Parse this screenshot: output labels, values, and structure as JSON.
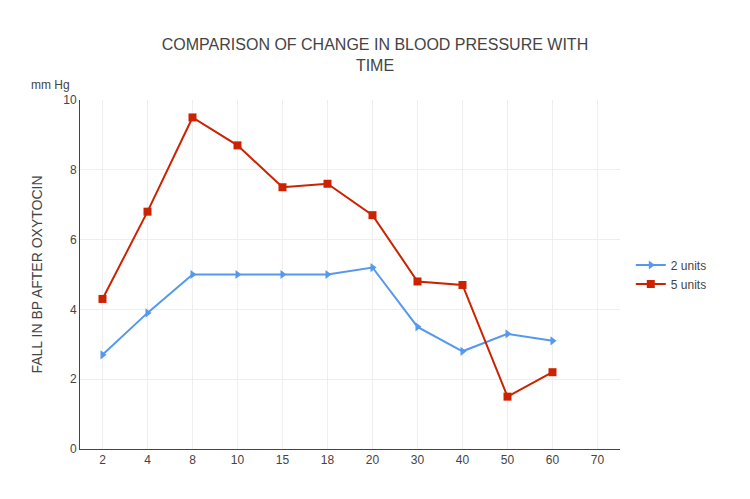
{
  "chart_data": {
    "type": "line",
    "title": "COMPARISON OF CHANGE IN BLOOD PRESSURE WITH\nTIME",
    "y_label": "FALL IN BP AFTER OXYTOCIN",
    "annotations": [
      "mm Hg"
    ],
    "categories": [
      "2",
      "4",
      "8",
      "10",
      "15",
      "18",
      "20",
      "30",
      "40",
      "50",
      "60",
      "70"
    ],
    "series": [
      {
        "name": "2 units",
        "color": "#5599ee",
        "marker": "triangle-right",
        "values": [
          2.7,
          3.9,
          5.0,
          5.0,
          5.0,
          5.0,
          5.2,
          3.5,
          2.8,
          3.3,
          3.1,
          null
        ]
      },
      {
        "name": "5 units",
        "color": "#cc2200",
        "marker": "square",
        "values": [
          4.3,
          6.8,
          9.5,
          8.7,
          7.5,
          7.6,
          6.7,
          4.8,
          4.7,
          1.5,
          2.2,
          null
        ]
      }
    ],
    "ylim": [
      0,
      10
    ],
    "yticks": [
      0,
      2,
      4,
      6,
      8,
      10
    ],
    "grid": true,
    "legend": "right"
  }
}
